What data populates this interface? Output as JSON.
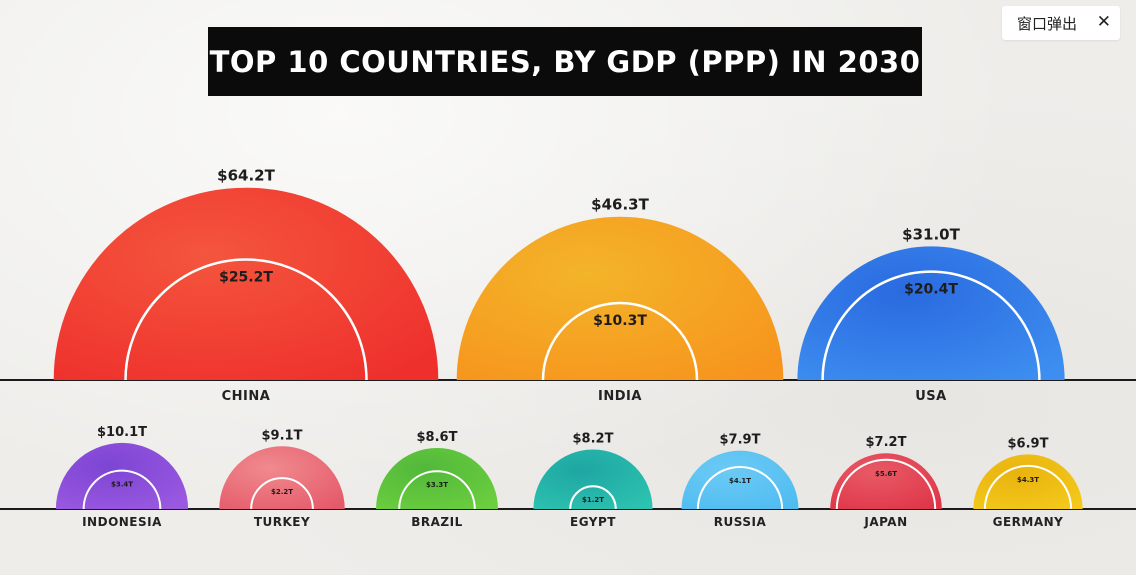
{
  "popup": {
    "label": "窗口弹出",
    "close_glyph": "✕"
  },
  "chart_data": {
    "type": "nested-semicircle",
    "title": "TOP 10 COUNTRIES, BY GDP (PPP) IN 2030",
    "units": "trillion USD",
    "countries": [
      {
        "name": "CHINA",
        "outer": 64.2,
        "outer_label": "$64.2T",
        "inner": 25.2,
        "inner_label": "$25.2T",
        "color": "#ee2f2c",
        "color2": "#f4553d",
        "row": 1
      },
      {
        "name": "INDIA",
        "outer": 46.3,
        "outer_label": "$46.3T",
        "inner": 10.3,
        "inner_label": "$10.3T",
        "color": "#f7941d",
        "color2": "#f3b429",
        "row": 1
      },
      {
        "name": "USA",
        "outer": 31.0,
        "outer_label": "$31.0T",
        "inner": 20.4,
        "inner_label": "$20.4T",
        "color": "#3d8ef0",
        "color2": "#2a6ae0",
        "row": 1
      },
      {
        "name": "INDONESIA",
        "outer": 10.1,
        "outer_label": "$10.1T",
        "inner": 3.4,
        "inner_label": "$3.4T",
        "color": "#9b59e0",
        "color2": "#7d45d4",
        "row": 2
      },
      {
        "name": "TURKEY",
        "outer": 9.1,
        "outer_label": "$9.1T",
        "inner": 2.2,
        "inner_label": "$2.2T",
        "color": "#e55a6a",
        "color2": "#f08a8e",
        "row": 2
      },
      {
        "name": "BRAZIL",
        "outer": 8.6,
        "outer_label": "$8.6T",
        "inner": 3.3,
        "inner_label": "$3.3T",
        "color": "#6ccf3f",
        "color2": "#52b83a",
        "row": 2
      },
      {
        "name": "EGYPT",
        "outer": 8.2,
        "outer_label": "$8.2T",
        "inner": 1.2,
        "inner_label": "$1.2T",
        "color": "#2cc3b0",
        "color2": "#1fa6a3",
        "row": 2
      },
      {
        "name": "RUSSIA",
        "outer": 7.9,
        "outer_label": "$7.9T",
        "inner": 4.1,
        "inner_label": "$4.1T",
        "color": "#4fbcf0",
        "color2": "#6ccaf5",
        "row": 2
      },
      {
        "name": "JAPAN",
        "outer": 7.2,
        "outer_label": "$7.2T",
        "inner": 5.6,
        "inner_label": "$5.6T",
        "color": "#df3548",
        "color2": "#e85a66",
        "row": 2
      },
      {
        "name": "GERMANY",
        "outer": 6.9,
        "outer_label": "$6.9T",
        "inner": 4.3,
        "inner_label": "$4.3T",
        "color": "#f4c91b",
        "color2": "#e9b30f",
        "row": 2
      }
    ]
  }
}
